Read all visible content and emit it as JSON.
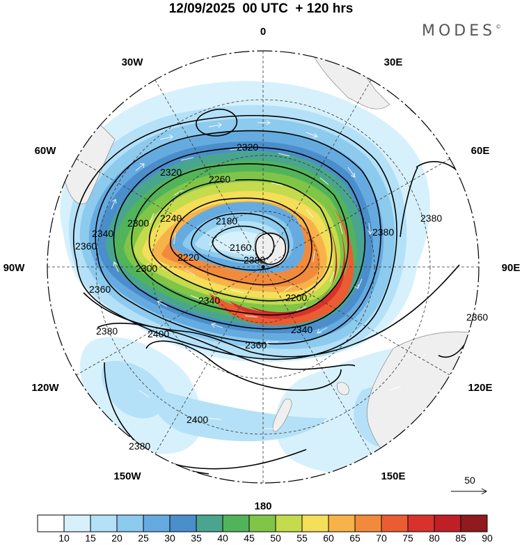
{
  "header": {
    "title": "12/09/2025  00 UTC  + 120 hrs",
    "brand": "MODES",
    "brand_mark": "©"
  },
  "map": {
    "projection": "south-polar-stereographic",
    "longitude_labels": {
      "top": "0",
      "bottom": "180",
      "left": "90W",
      "right": "90E",
      "upper_left_1": "30W",
      "upper_left_2": "60W",
      "upper_right_1": "30E",
      "upper_right_2": "60E",
      "lower_left_1": "120W",
      "lower_left_2": "150W",
      "lower_right_1": "120E",
      "lower_right_2": "150E"
    },
    "contour_labels": [
      "2320",
      "2320",
      "2260",
      "2240",
      "2300",
      "2340",
      "2360",
      "2180",
      "2160",
      "2220",
      "2300",
      "2360",
      "2340",
      "2380",
      "2400",
      "2360",
      "2380",
      "2380",
      "2400",
      "2380",
      "2360",
      "2340",
      "2200",
      "2380"
    ],
    "wind_reference_label": "50"
  },
  "colorbar": {
    "labels": [
      "10",
      "15",
      "20",
      "25",
      "30",
      "35",
      "40",
      "45",
      "50",
      "55",
      "60",
      "65",
      "70",
      "75",
      "80",
      "85",
      "90"
    ],
    "colors": [
      "#ffffff",
      "#d7f1fc",
      "#b4e1f7",
      "#8ccaee",
      "#66abe0",
      "#4a8fcb",
      "#4aa58f",
      "#52b45a",
      "#80c548",
      "#c3db4d",
      "#f4de5a",
      "#f7b349",
      "#f18b3b",
      "#eb5c32",
      "#d9322d",
      "#c01f28",
      "#911a1f"
    ]
  }
}
